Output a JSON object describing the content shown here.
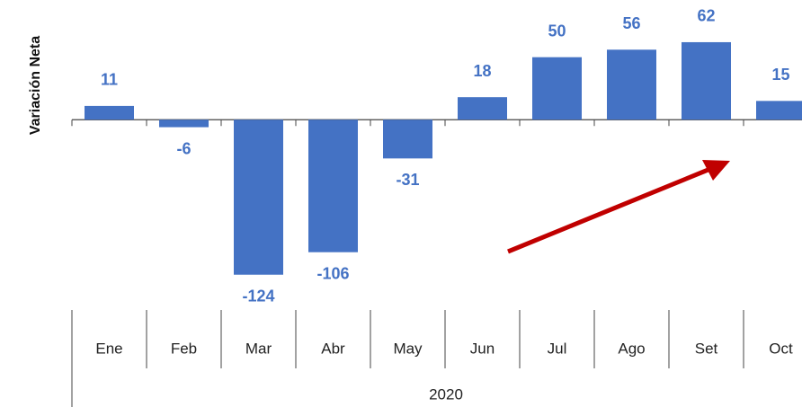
{
  "chart_data": {
    "type": "bar",
    "y_label": "Variación Neta",
    "categories": [
      "Ene",
      "Feb",
      "Mar",
      "Abr",
      "May",
      "Jun",
      "Jul",
      "Ago",
      "Set",
      "Oct"
    ],
    "values": [
      11,
      -6,
      -124,
      -106,
      -31,
      18,
      50,
      56,
      62,
      15
    ],
    "group_label": "2020",
    "color": "#4472c4",
    "ylim": [
      -140,
      90
    ]
  }
}
